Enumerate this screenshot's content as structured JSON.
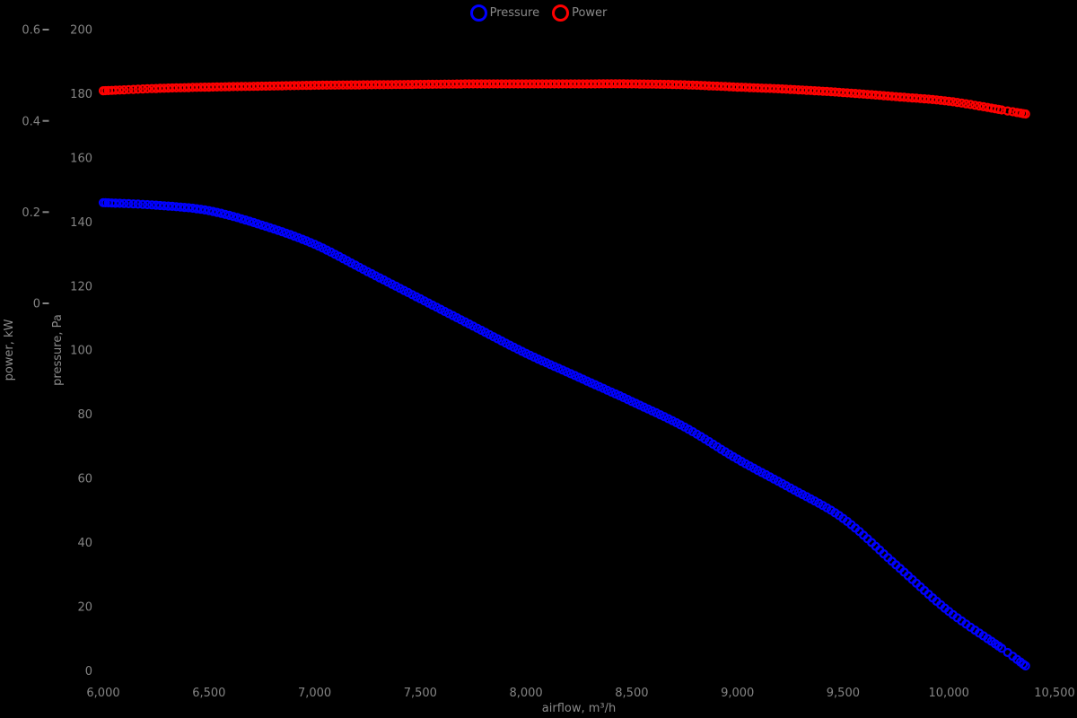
{
  "colors": {
    "background": "#000000",
    "tick_text": "#848484",
    "axis_title_text": "#8a8a8a",
    "pressure_series": "#0000ff",
    "power_series": "#ff0000"
  },
  "legend": {
    "position": "top-center",
    "entries": [
      "Pressure",
      "Power"
    ]
  },
  "chart_data": {
    "type": "line",
    "title": "",
    "grid": false,
    "background": "#000000",
    "marker_style": "open-circle",
    "x": [
      6000,
      6250,
      6500,
      6750,
      7000,
      7250,
      7500,
      7750,
      8000,
      8250,
      8500,
      8750,
      9000,
      9250,
      9500,
      9750,
      10000,
      10250,
      10363
    ],
    "series": [
      {
        "name": "Pressure",
        "yaxis": "pressure",
        "color": "#0000ff",
        "units": "Pa",
        "values": [
          146,
          145.2,
          143.5,
          139,
          133,
          124.5,
          116,
          107.5,
          99,
          91.5,
          84,
          76,
          66,
          57,
          47.5,
          33,
          18.5,
          7,
          1.5
        ]
      },
      {
        "name": "Power",
        "yaxis": "power",
        "color": "#ff0000",
        "units": "kW",
        "values": [
          0.466,
          0.471,
          0.474,
          0.476,
          0.478,
          0.479,
          0.48,
          0.481,
          0.481,
          0.481,
          0.481,
          0.479,
          0.474,
          0.469,
          0.462,
          0.453,
          0.443,
          0.424,
          0.415
        ]
      }
    ],
    "axes": {
      "x": {
        "label": "airflow, m³/h",
        "tick_values": [
          6000,
          6500,
          7000,
          7500,
          8000,
          8500,
          9000,
          9500,
          10000,
          10500
        ],
        "ticks": [
          "6,000",
          "6,500",
          "7,000",
          "7,500",
          "8,000",
          "8,500",
          "9,000",
          "9,500",
          "10,000",
          "10,500"
        ],
        "range": [
          6000,
          10500
        ]
      },
      "pressure": {
        "label": "pressure, Pa",
        "side": "left-inner",
        "tick_values": [
          0,
          20,
          40,
          60,
          80,
          100,
          120,
          140,
          160,
          180,
          200
        ],
        "ticks": [
          "0",
          "20",
          "40",
          "60",
          "80",
          "100",
          "120",
          "140",
          "160",
          "180",
          "200"
        ],
        "range": [
          0,
          200
        ]
      },
      "power": {
        "label": "power, kW",
        "side": "left-outer",
        "tick_values": [
          0,
          0.2,
          0.4,
          0.6
        ],
        "ticks": [
          "0",
          "0.2",
          "0.4",
          "0.6"
        ],
        "range": [
          -0.8,
          0.6
        ]
      }
    },
    "legend_position": "top-center"
  }
}
